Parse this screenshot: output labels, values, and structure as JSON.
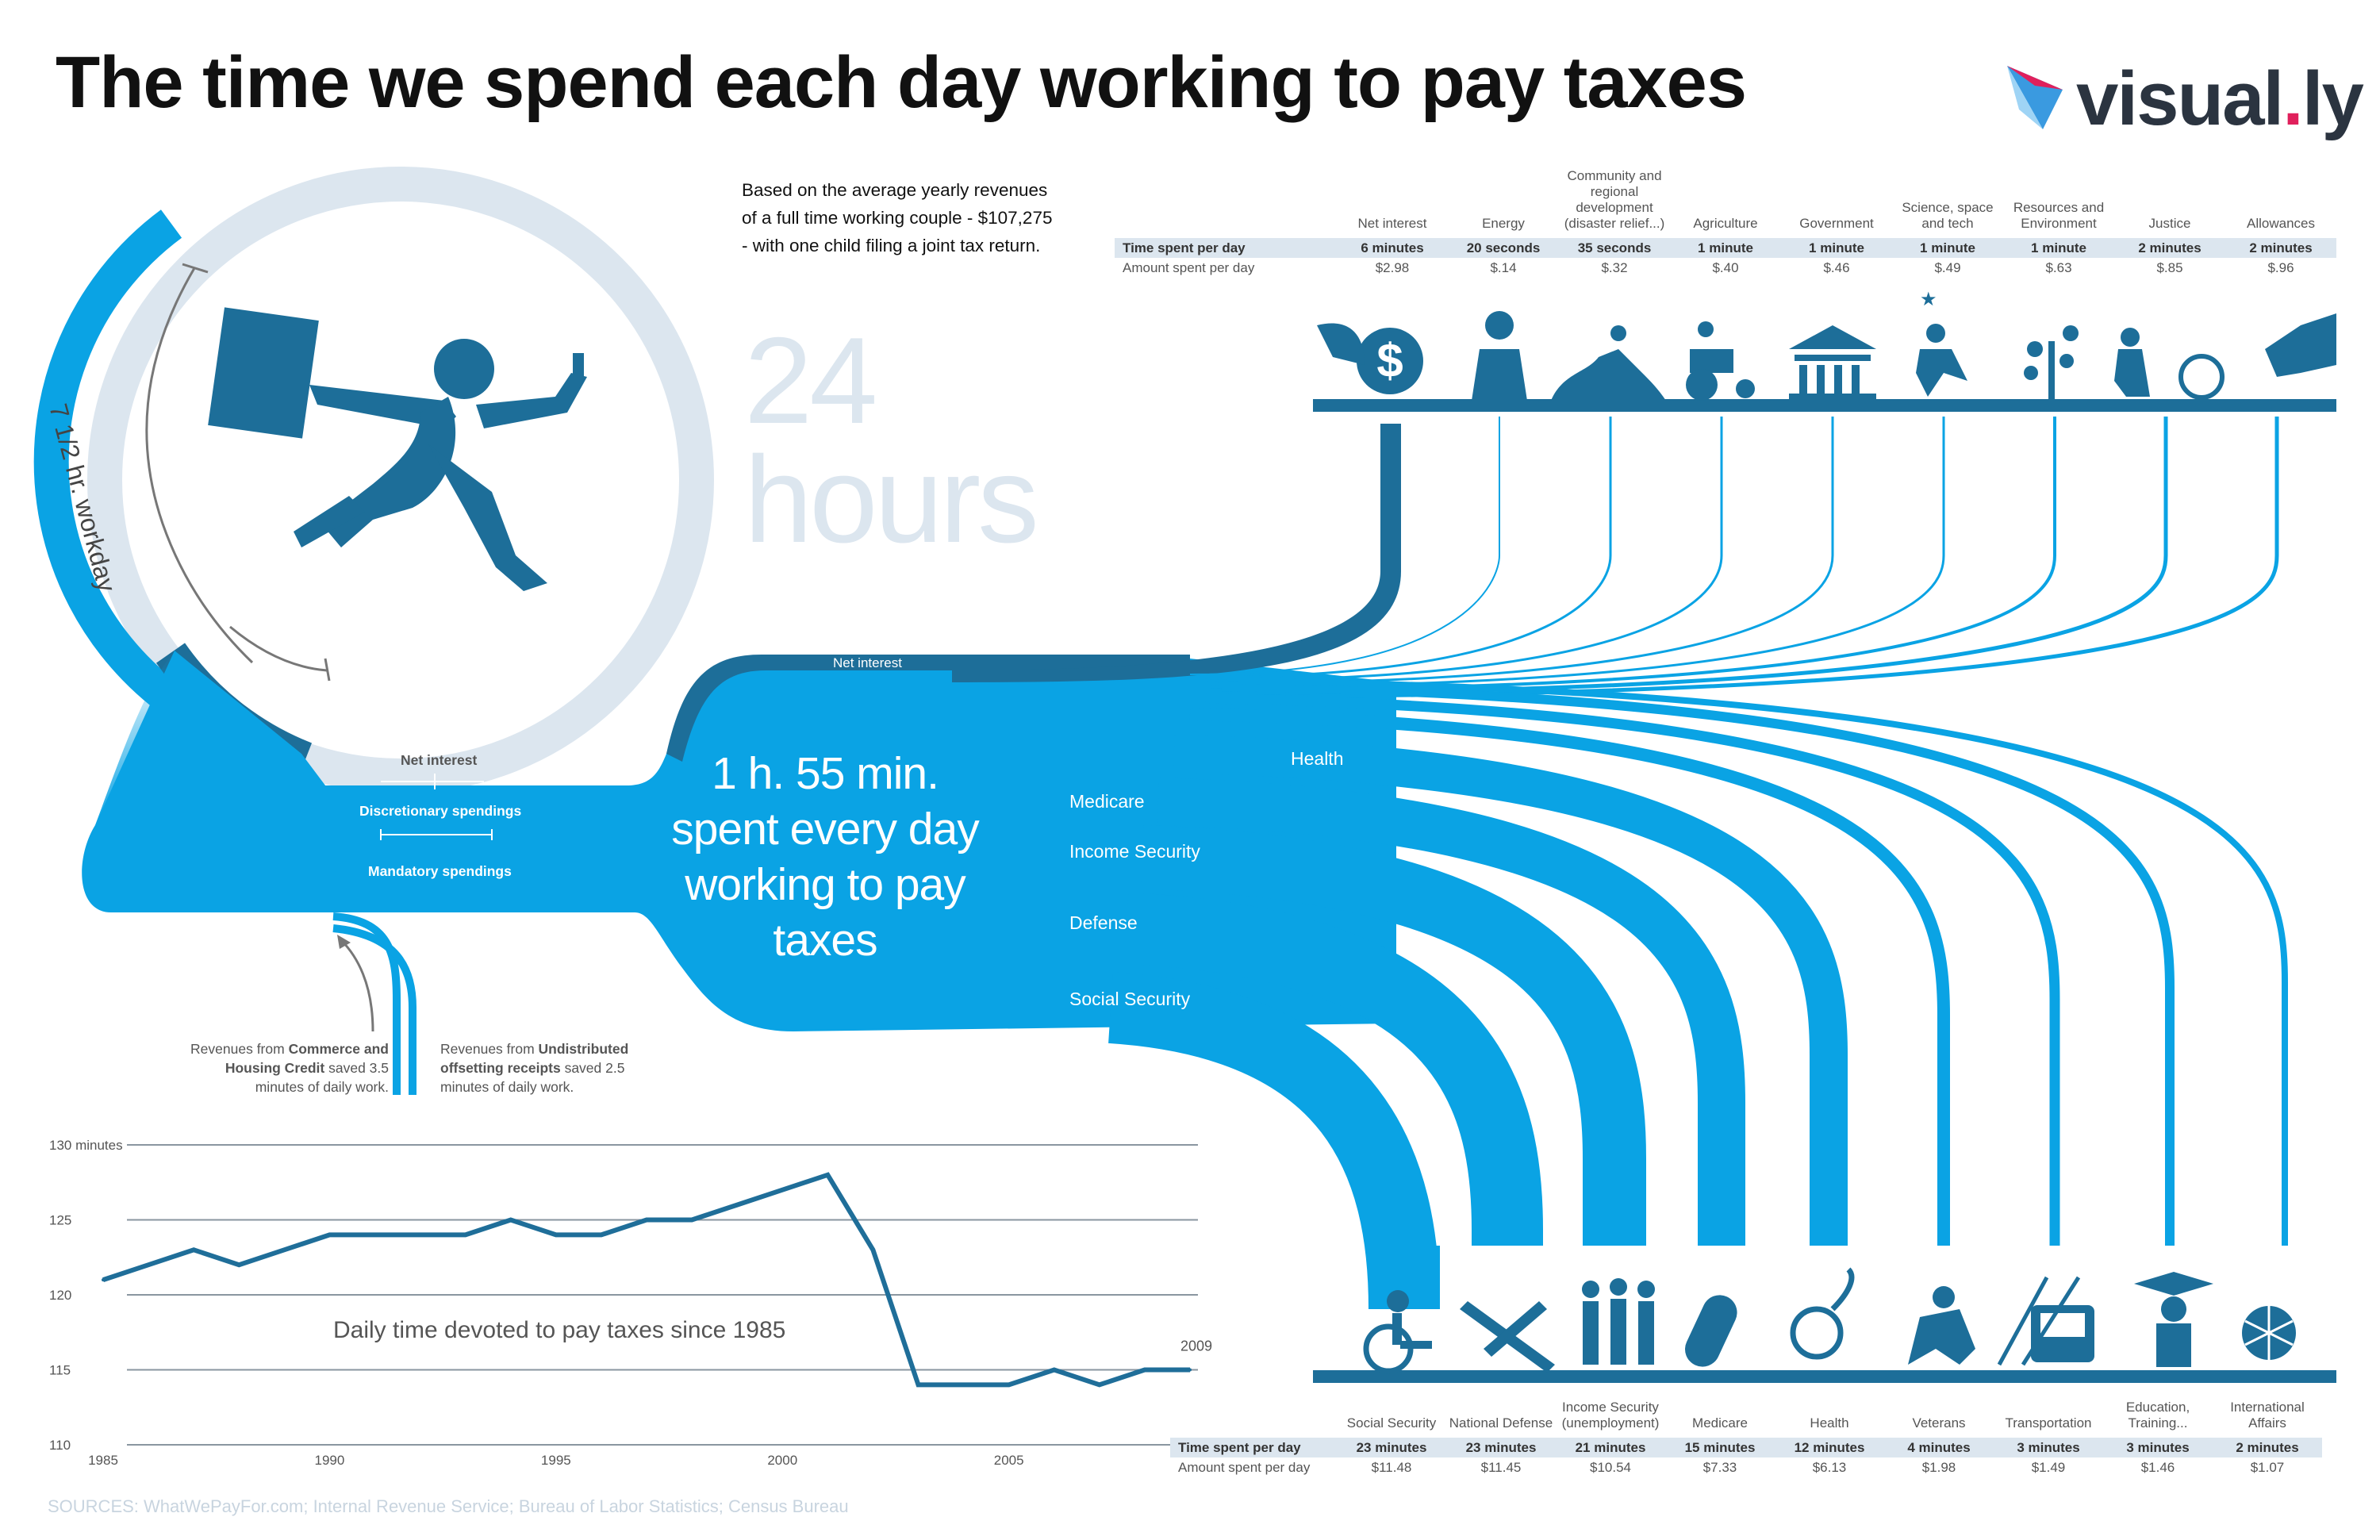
{
  "title": "The time we spend each day working to pay taxes",
  "logo": {
    "text_main": "visual",
    "text_dot": ".",
    "text_end": "ly"
  },
  "basis_text": "Based on the average yearly revenues of a full time working couple - $107,275 - with one child filing a joint tax return.",
  "clock": {
    "label_24": "24",
    "label_hours": "hours",
    "workday_label": "7 1/2 hr. workday"
  },
  "center": {
    "line1": "1 h. 55 min.",
    "line2": "spent every day",
    "line3": "working to pay",
    "line4": "taxes"
  },
  "flow_labels": {
    "net_interest_top": "Net interest",
    "health": "Health",
    "medicare": "Medicare",
    "income_security": "Income Security",
    "defense": "Defense",
    "social_security": "Social Security",
    "net_interest_left": "Net interest",
    "discretionary": "Discretionary spendings",
    "mandatory": "Mandatory spendings"
  },
  "revenues": {
    "commerce_pre": "Revenues from ",
    "commerce_bold": "Commerce and Housing Credit",
    "commerce_post": " saved 3.5 minutes of daily work.",
    "undistributed_pre": "Revenues from ",
    "undistributed_bold": "Undistributed offsetting receipts",
    "undistributed_post": " saved 2.5 minutes of daily work."
  },
  "top_table": {
    "row1_label": "Time spent per day",
    "row2_label": "Amount spent per day",
    "categories": [
      {
        "name": "Net interest",
        "time": "6 minutes",
        "amount": "$2.98"
      },
      {
        "name": "Energy",
        "time": "20 seconds",
        "amount": "$.14"
      },
      {
        "name": "Community and regional development (disaster relief...)",
        "time": "35 seconds",
        "amount": "$.32"
      },
      {
        "name": "Agriculture",
        "time": "1 minute",
        "amount": "$.40"
      },
      {
        "name": "Government",
        "time": "1 minute",
        "amount": "$.46"
      },
      {
        "name": "Science, space and tech",
        "time": "1 minute",
        "amount": "$.49"
      },
      {
        "name": "Resources and Environment",
        "time": "1 minute",
        "amount": "$.63"
      },
      {
        "name": "Justice",
        "time": "2 minutes",
        "amount": "$.85"
      },
      {
        "name": "Allowances",
        "time": "2 minutes",
        "amount": "$.96"
      }
    ]
  },
  "bottom_table": {
    "row1_label": "Time spent per day",
    "row2_label": "Amount spent per day",
    "categories": [
      {
        "name": "Social Security",
        "time": "23 minutes",
        "amount": "$11.48"
      },
      {
        "name": "National Defense",
        "time": "23 minutes",
        "amount": "$11.45"
      },
      {
        "name": "Income Security (unemployment)",
        "time": "21 minutes",
        "amount": "$10.54"
      },
      {
        "name": "Medicare",
        "time": "15 minutes",
        "amount": "$7.33"
      },
      {
        "name": "Health",
        "time": "12 minutes",
        "amount": "$6.13"
      },
      {
        "name": "Veterans",
        "time": "4 minutes",
        "amount": "$1.98"
      },
      {
        "name": "Transportation",
        "time": "3 minutes",
        "amount": "$1.49"
      },
      {
        "name": "Education, Training...",
        "time": "3 minutes",
        "amount": "$1.46"
      },
      {
        "name": "International Affairs",
        "time": "2 minutes",
        "amount": "$1.07"
      }
    ]
  },
  "chart_data": {
    "type": "line",
    "title": "Daily time devoted to pay taxes since 1985",
    "x": [
      1985,
      1986,
      1987,
      1988,
      1989,
      1990,
      1991,
      1992,
      1993,
      1994,
      1995,
      1996,
      1997,
      1998,
      1999,
      2000,
      2001,
      2002,
      2003,
      2004,
      2005,
      2006,
      2007,
      2008,
      2009
    ],
    "values": [
      121,
      122,
      123,
      122,
      123,
      124,
      124,
      124,
      124,
      125,
      124,
      124,
      125,
      125,
      126,
      127,
      128,
      123,
      114,
      114,
      114,
      115,
      114,
      115,
      115
    ],
    "ylim": [
      110,
      130
    ],
    "y_ticks": [
      110,
      115,
      120,
      125,
      130
    ],
    "y_tick_labels": [
      "110",
      "115",
      "120",
      "125",
      "130 minutes"
    ],
    "x_ticks": [
      1985,
      1990,
      1995,
      2000,
      2005
    ],
    "end_label": "2009",
    "grid": true,
    "color": "#1f6e99"
  },
  "sources": "SOURCES: WhatWePayFor.com; Internal Revenue Service; Bureau of Labor Statistics; Census Bureau",
  "colors": {
    "bright_blue": "#0aa3e4",
    "dark_blue": "#1d6e99",
    "pale_blue": "#dce6ef",
    "line": "#1f6e99"
  }
}
